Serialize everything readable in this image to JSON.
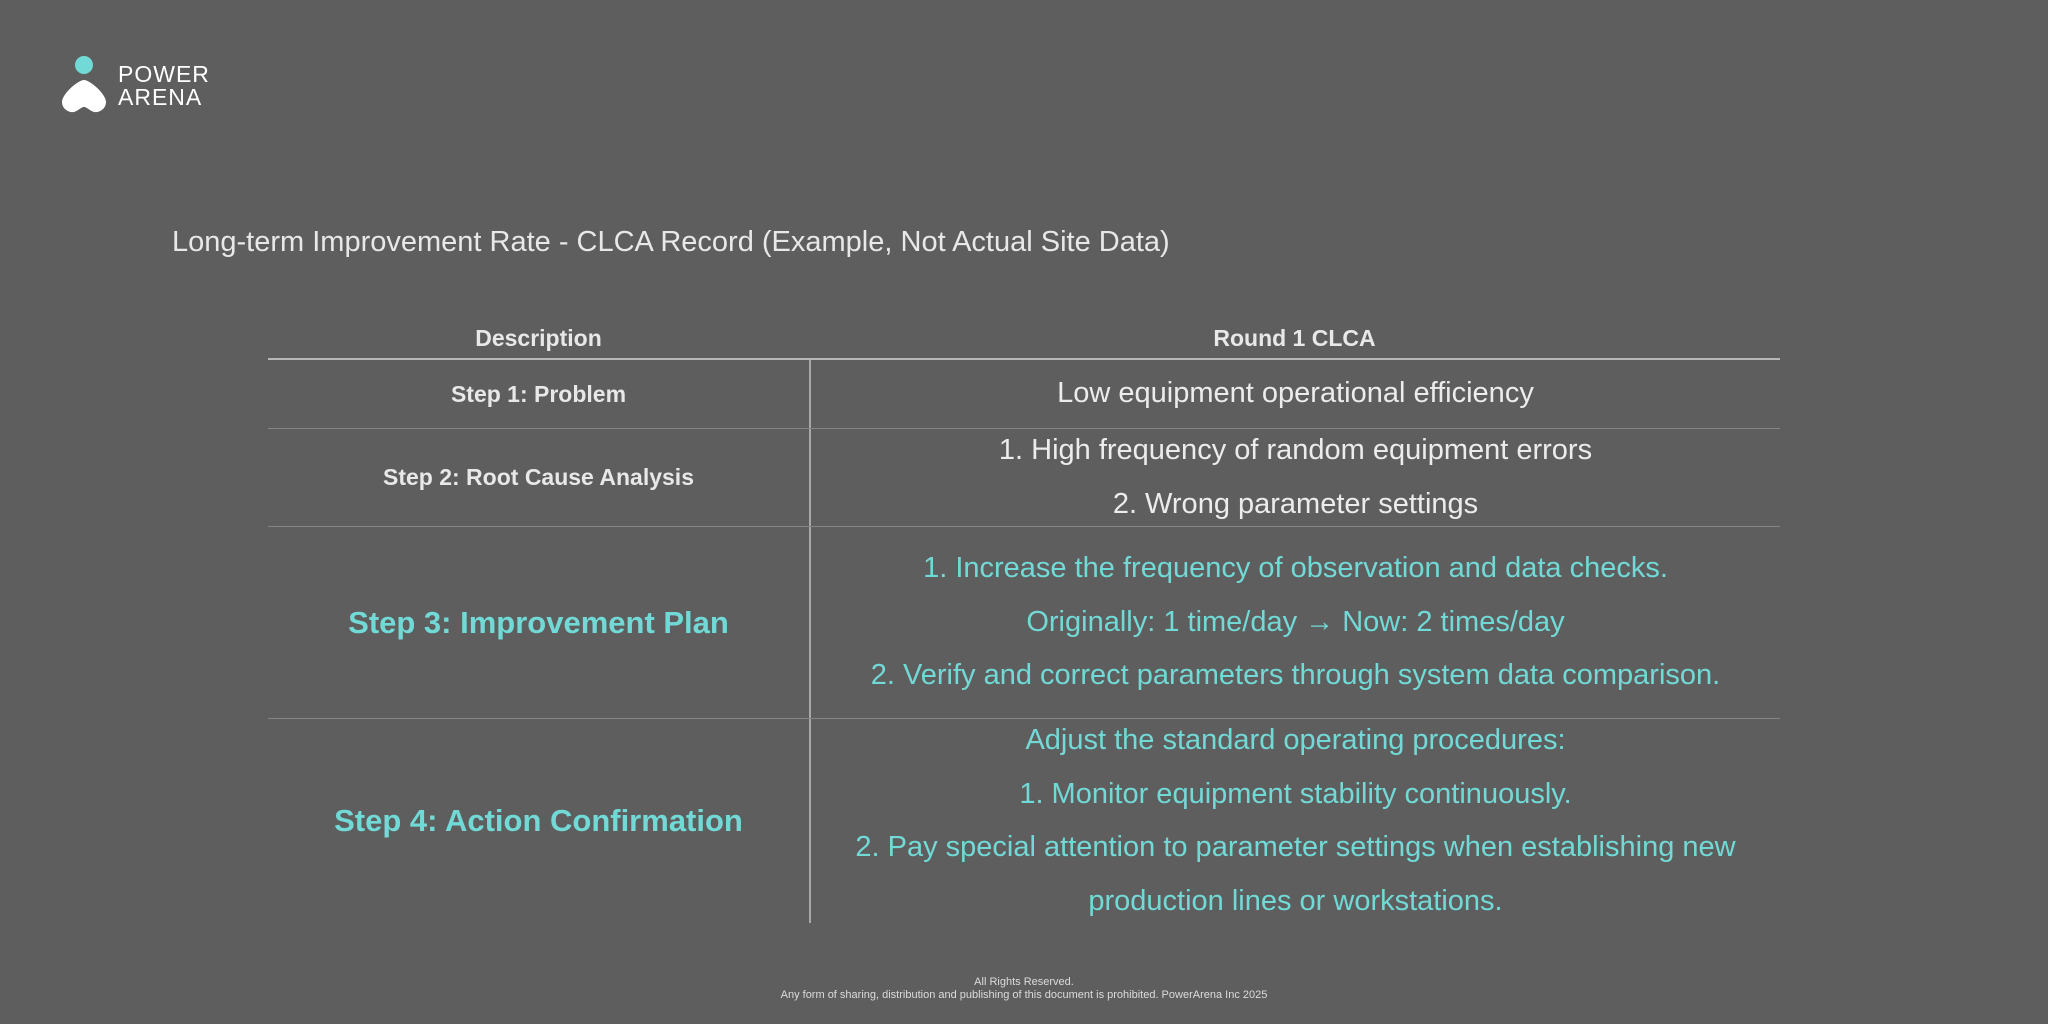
{
  "brand": {
    "line1": "POWER",
    "line2": "ARENA",
    "accent_color": "#72dad6"
  },
  "title": "Long-term Improvement Rate - CLCA Record (Example, Not Actual Site Data)",
  "table": {
    "headers": {
      "description": "Description",
      "round": "Round 1 CLCA"
    },
    "rows": [
      {
        "step": "Step 1: Problem",
        "lines": [
          "Low equipment operational efficiency"
        ]
      },
      {
        "step": "Step 2: Root Cause Analysis",
        "lines": [
          "1. High frequency of random equipment errors",
          "2. Wrong parameter settings"
        ]
      },
      {
        "step": "Step 3: Improvement Plan",
        "lines": [
          "1. Increase the frequency of observation and data checks.",
          "Originally: 1 time/day → Now: 2 times/day",
          "2. Verify and correct parameters through system data comparison."
        ]
      },
      {
        "step": "Step 4: Action Confirmation",
        "lines": [
          "Adjust the standard operating procedures:",
          "1. Monitor equipment stability continuously.",
          "2. Pay special attention to parameter settings when establishing new",
          "production lines or workstations."
        ]
      }
    ]
  },
  "footer": {
    "line1": "All Rights Reserved.",
    "line2": "Any form of sharing, distribution and publishing of this document is prohibited. PowerArena Inc 2025"
  }
}
